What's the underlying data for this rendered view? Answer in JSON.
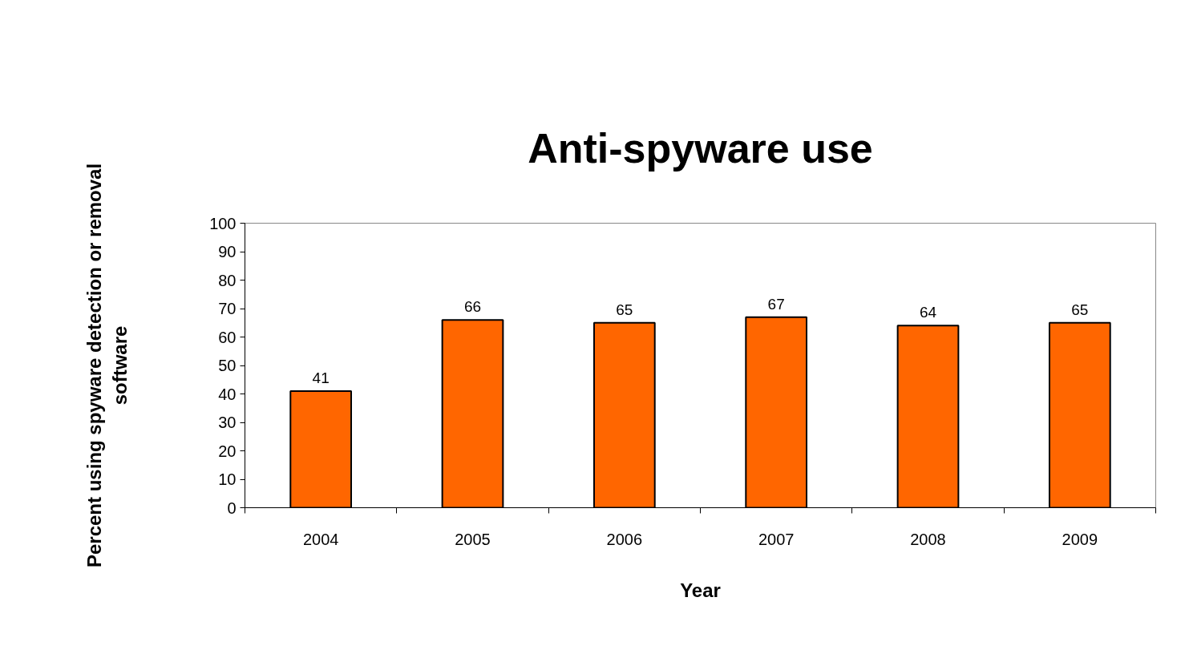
{
  "chart_data": {
    "type": "bar",
    "title": "Anti-spyware use",
    "xlabel": "Year",
    "ylabel": "Percent using spyware detection or removal\nsoftware",
    "categories": [
      "2004",
      "2005",
      "2006",
      "2007",
      "2008",
      "2009"
    ],
    "values": [
      41,
      66,
      65,
      67,
      64,
      65
    ],
    "color": "#ff6600",
    "ylim": [
      0,
      100
    ],
    "yticks": [
      0,
      10,
      20,
      30,
      40,
      50,
      60,
      70,
      80,
      90,
      100
    ],
    "grid": false,
    "data_labels": true
  }
}
